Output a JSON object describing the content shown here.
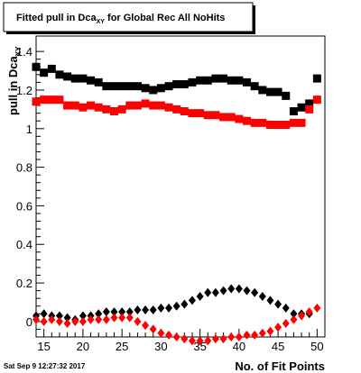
{
  "chart_data": {
    "type": "scatter",
    "title": "Fitted pull in Dca",
    "title_sub": "XY",
    "title_suffix": " for Global Rec All NoHits",
    "xlabel": "No. of Fit Points",
    "ylabel": "pull in Dca",
    "ylabel_sub": "XY",
    "timestamp": "Sat Sep  9 12:27:32 2017",
    "xlim": [
      14,
      51
    ],
    "ylim": [
      -0.08,
      1.48
    ],
    "x_ticks": [
      15,
      20,
      25,
      30,
      35,
      40,
      45,
      50
    ],
    "y_ticks": [
      0,
      0.2,
      0.4,
      0.6,
      0.8,
      1,
      1.2,
      1.4
    ],
    "x_tick_labels": [
      "15",
      "20",
      "25",
      "30",
      "35",
      "40",
      "45",
      "50"
    ],
    "y_tick_labels": [
      "0",
      "0.2",
      "0.4",
      "0.6",
      "0.8",
      "1",
      "1.2",
      "1.4"
    ],
    "grid": false,
    "series": [
      {
        "marker": "square",
        "color": "#000000",
        "x": [
          14,
          15,
          16,
          17,
          18,
          19,
          20,
          21,
          22,
          23,
          24,
          25,
          26,
          27,
          28,
          29,
          30,
          31,
          32,
          33,
          34,
          35,
          36,
          37,
          38,
          39,
          40,
          41,
          42,
          43,
          44,
          45,
          46,
          47,
          48,
          49,
          50
        ],
        "y": [
          1.32,
          1.29,
          1.31,
          1.28,
          1.27,
          1.26,
          1.26,
          1.25,
          1.24,
          1.22,
          1.22,
          1.22,
          1.22,
          1.22,
          1.21,
          1.2,
          1.21,
          1.22,
          1.23,
          1.23,
          1.24,
          1.25,
          1.25,
          1.26,
          1.26,
          1.25,
          1.25,
          1.24,
          1.22,
          1.2,
          1.19,
          1.19,
          1.17,
          1.09,
          1.11,
          1.13,
          1.26
        ]
      },
      {
        "marker": "square",
        "color": "#ff0000",
        "x": [
          14,
          15,
          16,
          17,
          18,
          19,
          20,
          21,
          22,
          23,
          24,
          25,
          26,
          27,
          28,
          29,
          30,
          31,
          32,
          33,
          34,
          35,
          36,
          37,
          38,
          39,
          40,
          41,
          42,
          43,
          44,
          45,
          46,
          47,
          48,
          49,
          50
        ],
        "y": [
          1.14,
          1.15,
          1.15,
          1.15,
          1.12,
          1.12,
          1.11,
          1.12,
          1.11,
          1.1,
          1.09,
          1.1,
          1.12,
          1.12,
          1.13,
          1.12,
          1.12,
          1.11,
          1.1,
          1.09,
          1.08,
          1.08,
          1.07,
          1.07,
          1.06,
          1.06,
          1.05,
          1.04,
          1.03,
          1.03,
          1.02,
          1.02,
          1.02,
          1.03,
          1.03,
          1.1,
          1.15
        ]
      },
      {
        "marker": "diamond",
        "color": "#000000",
        "x": [
          14,
          15,
          16,
          17,
          18,
          19,
          20,
          21,
          22,
          23,
          24,
          25,
          26,
          27,
          28,
          29,
          30,
          31,
          32,
          33,
          34,
          35,
          36,
          37,
          38,
          39,
          40,
          41,
          42,
          43,
          44,
          45,
          46,
          47,
          48,
          49
        ],
        "y": [
          0.03,
          0.04,
          0.03,
          0.03,
          0.02,
          0.01,
          0.03,
          0.03,
          0.04,
          0.05,
          0.05,
          0.05,
          0.05,
          0.06,
          0.06,
          0.06,
          0.07,
          0.07,
          0.08,
          0.09,
          0.11,
          0.13,
          0.15,
          0.15,
          0.16,
          0.17,
          0.17,
          0.16,
          0.15,
          0.13,
          0.11,
          0.09,
          0.07,
          0.04,
          0.04,
          0.04
        ]
      },
      {
        "marker": "diamond",
        "color": "#ff0000",
        "x": [
          14,
          15,
          16,
          17,
          18,
          19,
          20,
          21,
          22,
          23,
          24,
          25,
          26,
          27,
          28,
          29,
          30,
          31,
          32,
          33,
          34,
          35,
          36,
          37,
          38,
          39,
          40,
          41,
          42,
          43,
          44,
          45,
          46,
          47,
          48,
          49,
          50
        ],
        "y": [
          0.01,
          0.0,
          0.01,
          0.0,
          -0.01,
          0.0,
          0.0,
          0.01,
          0.01,
          0.01,
          0.02,
          0.02,
          0.02,
          0.0,
          -0.02,
          -0.04,
          -0.06,
          -0.07,
          -0.08,
          -0.09,
          -0.1,
          -0.1,
          -0.1,
          -0.09,
          -0.09,
          -0.08,
          -0.08,
          -0.07,
          -0.07,
          -0.06,
          -0.05,
          -0.03,
          -0.01,
          0.01,
          0.03,
          0.05,
          0.07
        ]
      }
    ]
  }
}
